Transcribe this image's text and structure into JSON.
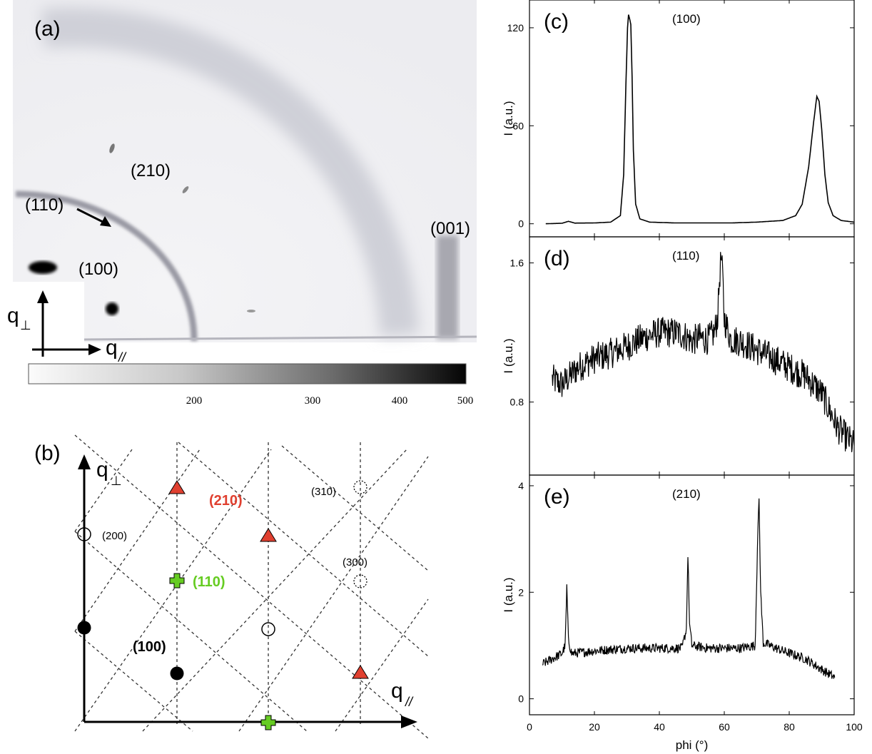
{
  "panel_a": {
    "label": "(a)",
    "peaks": [
      "(210)",
      "(110)",
      "(100)",
      "(001)"
    ],
    "axis_perp": "q",
    "axis_perp_sub": "⊥",
    "axis_par": "q",
    "axis_par_sub": "//",
    "colorbar": {
      "ticks": [
        "200",
        "300",
        "400",
        "500"
      ],
      "tick_values": [
        200,
        300,
        400,
        500
      ],
      "range": [
        0,
        500
      ],
      "colors": [
        "#ffffff",
        "#000000"
      ]
    }
  },
  "panel_b": {
    "label": "(b)",
    "axis_perp": "q",
    "axis_perp_sub": "⊥",
    "axis_par": "q",
    "axis_par_sub": "//",
    "labels": {
      "l210": "(210)",
      "l310": "(310)",
      "l200": "(200)",
      "l300": "(300)",
      "l110": "(110)",
      "l100": "(100)"
    },
    "colors": {
      "red": "#e04030",
      "green": "#66cc22",
      "black": "#000000"
    }
  },
  "chart_data": [
    {
      "type": "line",
      "panel_label": "(c)",
      "title": "(100)",
      "ylabel": "I (a.u.)",
      "xlim": [
        0,
        100
      ],
      "ylim": [
        -8,
        137
      ],
      "yticks": [
        0,
        60,
        120
      ],
      "series": [
        {
          "values": [
            [
              5,
              0
            ],
            [
              10,
              0.3
            ],
            [
              12,
              1.5
            ],
            [
              14,
              0.4
            ],
            [
              20,
              0.5
            ],
            [
              25,
              1
            ],
            [
              28,
              5
            ],
            [
              29,
              30
            ],
            [
              29.7,
              85
            ],
            [
              30.2,
              120
            ],
            [
              30.5,
              128
            ],
            [
              30.9,
              125
            ],
            [
              31.2,
              122
            ],
            [
              31.6,
              90
            ],
            [
              32,
              45
            ],
            [
              32.7,
              12
            ],
            [
              34,
              3
            ],
            [
              37,
              1
            ],
            [
              45,
              0.5
            ],
            [
              55,
              0.5
            ],
            [
              62,
              0.5
            ],
            [
              70,
              1
            ],
            [
              78,
              2
            ],
            [
              82,
              5
            ],
            [
              84,
              12
            ],
            [
              86,
              35
            ],
            [
              87.5,
              62
            ],
            [
              88.5,
              78
            ],
            [
              89.2,
              75
            ],
            [
              90,
              58
            ],
            [
              91,
              30
            ],
            [
              92,
              13
            ],
            [
              93.5,
              5
            ],
            [
              96,
              2
            ],
            [
              100,
              1
            ]
          ]
        }
      ]
    },
    {
      "type": "line",
      "panel_label": "(d)",
      "title": "(110)",
      "ylabel": "I (a.u.)",
      "xlim": [
        0,
        100
      ],
      "ylim": [
        0.38,
        1.75
      ],
      "yticks": [
        0.8,
        1.6
      ],
      "series": [
        {
          "values": [
            [
              7,
              0.93
            ],
            [
              10,
              0.9
            ],
            [
              15,
              1.0
            ],
            [
              20,
              1.05
            ],
            [
              25,
              1.08
            ],
            [
              30,
              1.12
            ],
            [
              35,
              1.17
            ],
            [
              40,
              1.2
            ],
            [
              45,
              1.2
            ],
            [
              48,
              1.18
            ],
            [
              50,
              1.15
            ],
            [
              52,
              1.17
            ],
            [
              55,
              1.16
            ],
            [
              57,
              1.2
            ],
            [
              58,
              1.3
            ],
            [
              58.5,
              1.5
            ],
            [
              59,
              1.63
            ],
            [
              59.5,
              1.52
            ],
            [
              60,
              1.28
            ],
            [
              62,
              1.16
            ],
            [
              65,
              1.15
            ],
            [
              70,
              1.1
            ],
            [
              75,
              1.05
            ],
            [
              80,
              1.0
            ],
            [
              85,
              0.95
            ],
            [
              90,
              0.85
            ],
            [
              95,
              0.65
            ],
            [
              100,
              0.55
            ]
          ]
        }
      ]
    },
    {
      "type": "line",
      "panel_label": "(e)",
      "title": "(210)",
      "ylabel": "I (a.u.)",
      "xlabel": "phi (°)",
      "xlim": [
        0,
        100
      ],
      "ylim": [
        -0.3,
        4.2
      ],
      "yticks": [
        0,
        2,
        4
      ],
      "xticks": [
        0,
        20,
        40,
        60,
        80,
        100
      ],
      "series": [
        {
          "values": [
            [
              4,
              0.65
            ],
            [
              7,
              0.75
            ],
            [
              10,
              0.85
            ],
            [
              11,
              1.0
            ],
            [
              11.5,
              2.1
            ],
            [
              12,
              1.1
            ],
            [
              13,
              0.85
            ],
            [
              20,
              0.9
            ],
            [
              30,
              0.95
            ],
            [
              40,
              0.95
            ],
            [
              47,
              0.95
            ],
            [
              48.3,
              1.3
            ],
            [
              48.8,
              2.7
            ],
            [
              49.3,
              1.4
            ],
            [
              50,
              1.0
            ],
            [
              55,
              0.95
            ],
            [
              65,
              0.95
            ],
            [
              69.5,
              1.0
            ],
            [
              70.2,
              2.8
            ],
            [
              70.7,
              3.8
            ],
            [
              71.2,
              2.0
            ],
            [
              72,
              1.05
            ],
            [
              78,
              0.9
            ],
            [
              85,
              0.75
            ],
            [
              90,
              0.55
            ],
            [
              94,
              0.4
            ]
          ]
        }
      ]
    }
  ]
}
